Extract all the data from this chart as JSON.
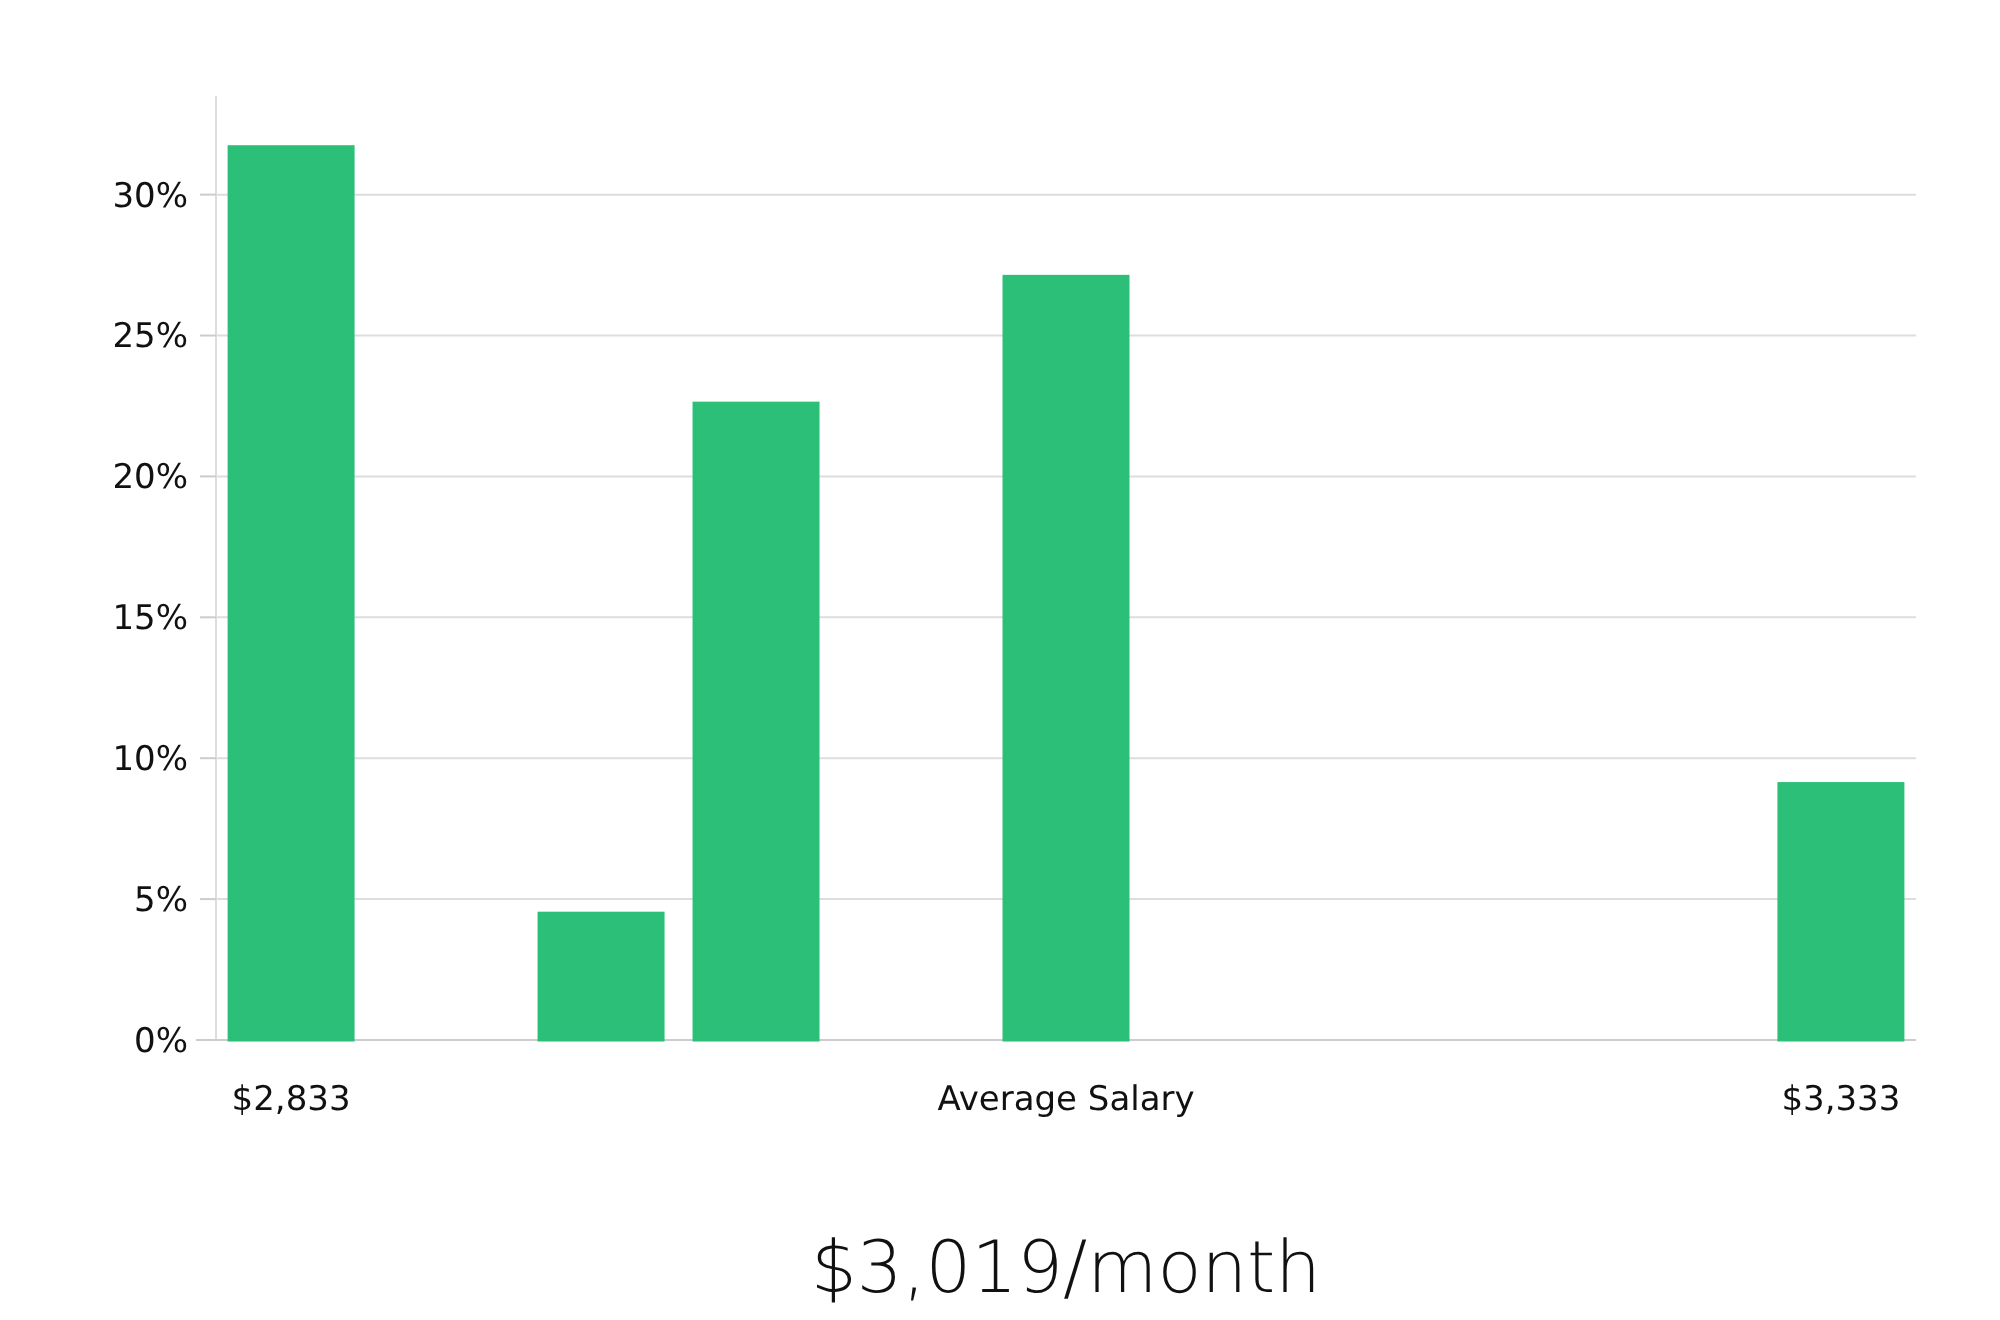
{
  "chart_data": {
    "type": "bar",
    "xlabel": "Average Salary",
    "annotations": [
      "$3,019/month"
    ],
    "categories": [
      "$2,833",
      null,
      null,
      null,
      null,
      null,
      null,
      null,
      null,
      null,
      "$3,333"
    ],
    "values": [
      31.7,
      0,
      4.5,
      22.6,
      0,
      27.1,
      0,
      0,
      0,
      0,
      9.1
    ],
    "colors": [
      "#2bbf78",
      "#2bbf78",
      "#2bbf78",
      "#2bbf78",
      "#111111",
      "#2bbf78",
      "#2bbf78",
      "#2bbf78",
      "#2bbf78",
      "#2bbf78",
      "#2bbf78"
    ],
    "ylim": [
      0,
      33.5
    ],
    "yticks": [
      {
        "value": 0,
        "label": "0%"
      },
      {
        "value": 5,
        "label": "5%"
      },
      {
        "value": 10,
        "label": "10%"
      },
      {
        "value": 15,
        "label": "15%"
      },
      {
        "value": 20,
        "label": "20%"
      },
      {
        "value": 25,
        "label": "25%"
      },
      {
        "value": 30,
        "label": "30%"
      }
    ],
    "grid": "y"
  }
}
